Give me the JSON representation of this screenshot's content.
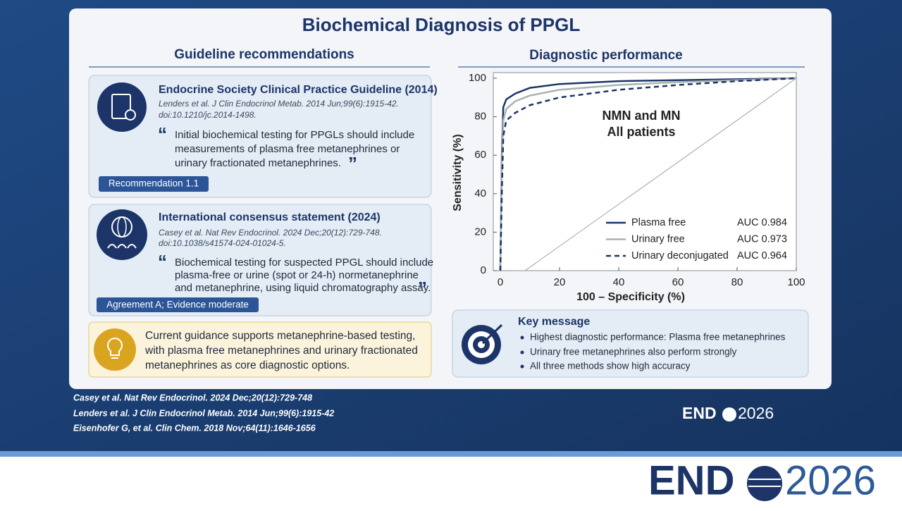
{
  "title": "Biochemical Diagnosis of PPGL",
  "quote_marks": [
    "“",
    "”"
  ],
  "left": {
    "heading": "Guideline recommendations",
    "cards": [
      {
        "title": "Endocrine Society Clinical Practice Guideline (2014)",
        "citation": [
          "Lenders et al. J Clin Endocrinol Metab. 2014 Jun;99(6):1915-42.",
          "doi:10.1210/jc.2014-1498."
        ],
        "quote": [
          "Initial biochemical testing for PPGLs should include",
          "measurements of plasma free metanephrines or",
          "urinary fractionated metanephrines."
        ],
        "badge": "Recommendation 1.1"
      },
      {
        "title": "International consensus statement (2024)",
        "citation": [
          "Casey et al. Nat Rev Endocrinol. 2024 Dec;20(12):729-748.",
          "doi:10.1038/s41574-024-01024-5."
        ],
        "quote": [
          "Biochemical testing for suspected PPGL should include",
          "plasma-free or urine (spot or 24-h) normetanephrine",
          "and metanephrine, using liquid chromatography assay."
        ],
        "badge": "Agreement A; Evidence moderate"
      }
    ],
    "summary": [
      "Current guidance supports metanephrine-based testing,",
      "with plasma free metanephrines and urinary fractionated",
      "metanephrines as core diagnostic options."
    ]
  },
  "right": {
    "heading": "Diagnostic performance",
    "key_message": {
      "title": "Key message",
      "bullets": [
        "Highest diagnostic performance: Plasma free metanephrines",
        "Urinary free metanephrines also perform strongly",
        "All three methods show high accuracy"
      ]
    }
  },
  "chart_data": {
    "type": "line",
    "xlabel": "100 – Specificity (%)",
    "ylabel": "Sensitivity (%)",
    "annotation": [
      "NMN and MN",
      "All patients"
    ],
    "x": [
      0,
      0.5,
      1,
      2,
      5,
      10,
      20,
      40,
      60,
      80,
      100
    ],
    "series": [
      {
        "name": "Plasma free",
        "auc": "AUC 0.984",
        "color": "#1c3468",
        "style": "solid",
        "values": [
          0,
          60,
          85,
          89,
          92,
          95,
          97,
          98.5,
          99,
          99.5,
          100
        ]
      },
      {
        "name": "Urinary free",
        "auc": "AUC 0.973",
        "color": "#a9b4ae",
        "style": "solid",
        "values": [
          0,
          55,
          78,
          84,
          88,
          91,
          94,
          96.5,
          98,
          99,
          100
        ]
      },
      {
        "name": "Urinary deconjugated",
        "auc": "AUC 0.964",
        "color": "#1c3468",
        "style": "dashed",
        "values": [
          0,
          40,
          70,
          78,
          82,
          86,
          90,
          94,
          96.5,
          98.5,
          100
        ]
      }
    ],
    "xlim": [
      0,
      100
    ],
    "ylim": [
      0,
      100
    ],
    "xticks": [
      0,
      20,
      40,
      60,
      80,
      100
    ],
    "yticks": [
      0,
      20,
      40,
      60,
      80,
      100
    ]
  },
  "references": [
    "Casey et al. Nat Rev Endocrinol. 2024 Dec;20(12):729-748",
    "Lenders et al. J Clin Endocrinol Metab. 2014 Jun;99(6):1915-42",
    "Eisenhofer G, et al. Clin Chem. 2018 Nov;64(11):1646-1656"
  ],
  "logo": {
    "left": "END",
    "right": "2026"
  }
}
